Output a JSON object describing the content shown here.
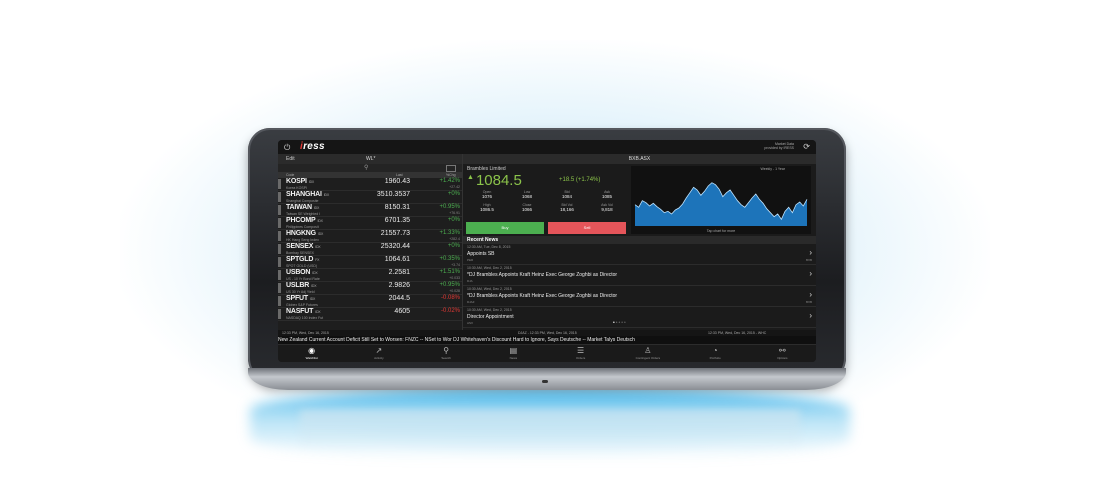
{
  "header": {
    "logo": "iress",
    "status_line1": "Market Data",
    "status_line2": "provided by IRESS"
  },
  "watchlist": {
    "edit": "Edit",
    "name": "WL*",
    "cols": {
      "code": "Code",
      "last": "Last",
      "chg": "%Chg"
    },
    "rows": [
      {
        "code": "KOSPI",
        "ex": "IDX",
        "name": "Korea KOSPI",
        "last": "1960.43",
        "chg": "+1.42%",
        "sub": "+27.42",
        "dir": "up"
      },
      {
        "code": "SHANGHAI",
        "ex": "IDX",
        "name": "Shanghai Composite",
        "last": "3510.3537",
        "chg": "+0%",
        "sub": "",
        "dir": "up"
      },
      {
        "code": "TAIWAN",
        "ex": "IDX",
        "name": "Taiwan SE Weighted I",
        "last": "8150.31",
        "chg": "+0.95%",
        "sub": "+76.91",
        "dir": "up"
      },
      {
        "code": "PHCOMP",
        "ex": "IDX",
        "name": "Philippines Composit",
        "last": "6701.35",
        "chg": "+0%",
        "sub": "",
        "dir": "up"
      },
      {
        "code": "HNGKNG",
        "ex": "IDX",
        "name": "HK Hang Seng Index",
        "last": "21557.73",
        "chg": "+1.33%",
        "sub": "+282.4",
        "dir": "up"
      },
      {
        "code": "SENSEX",
        "ex": "IDX",
        "name": "Bombay SENSEX",
        "last": "25320.44",
        "chg": "+0%",
        "sub": "",
        "dir": "up"
      },
      {
        "code": "SPTGLD",
        "ex": "FX",
        "name": "SPOT GOLD (USD)",
        "last": "1064.61",
        "chg": "+0.35%",
        "sub": "+3.74",
        "dir": "up"
      },
      {
        "code": "USBON",
        "ex": "IDX",
        "name": "US - 10 Yr Bond Rate",
        "last": "2.2581",
        "chg": "+1.51%",
        "sub": "+0.033",
        "dir": "up"
      },
      {
        "code": "USLBR",
        "ex": "IDX",
        "name": "US 30 Yr Adj Yield",
        "last": "2.9826",
        "chg": "+0.95%",
        "sub": "+0.028",
        "dir": "up"
      },
      {
        "code": "SPFUT",
        "ex": "IDX",
        "name": "Globex S&P Futures",
        "last": "2044.5",
        "chg": "-0.08%",
        "sub": "",
        "dir": "down"
      },
      {
        "code": "NASFUT",
        "ex": "IDX",
        "name": "NASDAQ 100 Index Fut",
        "last": "4605",
        "chg": "-0.02%",
        "sub": "",
        "dir": "down"
      }
    ]
  },
  "quote": {
    "header": "BXB.ASX",
    "name": "Brambles Limited",
    "price": "1084.5",
    "change": "+18.5 (+1.74%)",
    "fields": [
      {
        "k": "Open",
        "v": "1076"
      },
      {
        "k": "Low",
        "v": "1068"
      },
      {
        "k": "Bid",
        "v": "1084"
      },
      {
        "k": "Ask",
        "v": "1085"
      },
      {
        "k": "High",
        "v": "1086.5"
      },
      {
        "k": "Close",
        "v": "1066"
      },
      {
        "k": "Bid Vol",
        "v": "18,166"
      },
      {
        "k": "Ask Vol",
        "v": "9,818"
      }
    ],
    "buy": "Buy",
    "sell": "Sell",
    "chart_label": "Weekly - 1 Year",
    "chart_tap": "Tap chart for more",
    "chart_color": "#2196f3",
    "chart_values": [
      52,
      48,
      58,
      55,
      50,
      54,
      49,
      45,
      40,
      42,
      38,
      44,
      47,
      53,
      62,
      70,
      78,
      74,
      66,
      72,
      80,
      85,
      82,
      75,
      64,
      70,
      74,
      66,
      58,
      52,
      48,
      55,
      62,
      68,
      60,
      54,
      46,
      40,
      34,
      38,
      30,
      42,
      48,
      40,
      52,
      56,
      50,
      60
    ]
  },
  "news": {
    "title": "Recent News",
    "items": [
      {
        "time": "12:30 AM, Tue, Dec 8, 2015",
        "headline": "Appoints SB",
        "source": "PER",
        "code": "BXB"
      },
      {
        "time": "10:30 AM, Wed, Dec 2, 2015",
        "headline": "*DJ Brambles Appoints Kraft Heinz Exec George Zoghbi as Director",
        "source": "DJA",
        "code": ""
      },
      {
        "time": "10:30 AM, Wed, Dec 2, 2015",
        "headline": "*DJ Brambles Appoints Kraft Heinz Exec George Zoghbi as Director",
        "source": "DJAZ",
        "code": "BXB"
      },
      {
        "time": "10:30 AM, Wed, Dec 2, 2015",
        "headline": "Director Appointment",
        "source": "ASX",
        "code": ""
      }
    ]
  },
  "ticker": {
    "left_time": "12:33 PM, Wed, Dec 16, 2015",
    "mid_time": "DJAZ - 12:33 PM, Wed, Dec 16, 2015",
    "right_time": "12:33 PM, Wed, Dec 16, 2015 - WHC",
    "text": "New Zealand Current Account Deficit Still Set to Worsen: FNZC -- NSet to Wor  DJ Whitehaven's Discount Hard to Ignore, Says Deutsche -- Market Talys Deutsch"
  },
  "nav": [
    {
      "label": "Watchlist",
      "icon": "eye-icon",
      "glyph": "◉",
      "active": true
    },
    {
      "label": "Activity",
      "icon": "activity-icon",
      "glyph": "↗",
      "active": false
    },
    {
      "label": "Search",
      "icon": "search-icon",
      "glyph": "⚲",
      "active": false
    },
    {
      "label": "News",
      "icon": "news-icon",
      "glyph": "▤",
      "active": false
    },
    {
      "label": "Orders",
      "icon": "orders-icon",
      "glyph": "☰",
      "active": false
    },
    {
      "label": "Contingent Orders",
      "icon": "contingent-icon",
      "glyph": "♙",
      "active": false
    },
    {
      "label": "Portfolio",
      "icon": "portfolio-icon",
      "glyph": "◔",
      "active": false
    },
    {
      "label": "Options",
      "icon": "options-icon",
      "glyph": "⚯",
      "active": false
    }
  ]
}
